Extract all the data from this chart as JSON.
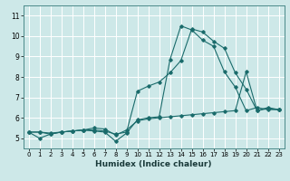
{
  "xlabel": "Humidex (Indice chaleur)",
  "bg_color": "#cde8e8",
  "line_color": "#1a6b6b",
  "grid_color": "#ffffff",
  "xlim": [
    -0.5,
    23.5
  ],
  "ylim": [
    4.5,
    11.5
  ],
  "xticks": [
    0,
    1,
    2,
    3,
    4,
    5,
    6,
    7,
    8,
    9,
    10,
    11,
    12,
    13,
    14,
    15,
    16,
    17,
    18,
    19,
    20,
    21,
    22,
    23
  ],
  "yticks": [
    5,
    6,
    7,
    8,
    9,
    10,
    11
  ],
  "line1_x": [
    0,
    1,
    2,
    3,
    4,
    5,
    6,
    7,
    8,
    9,
    10,
    11,
    12,
    13,
    14,
    15,
    16,
    17,
    18,
    19,
    20,
    21,
    22,
    23
  ],
  "line1_y": [
    5.3,
    5.0,
    5.2,
    5.3,
    5.35,
    5.4,
    5.35,
    5.3,
    4.85,
    5.25,
    5.9,
    6.0,
    6.05,
    8.85,
    10.5,
    10.3,
    9.8,
    9.5,
    8.25,
    7.5,
    6.35,
    6.5,
    6.4,
    6.4
  ],
  "line2_x": [
    0,
    1,
    2,
    3,
    4,
    5,
    6,
    7,
    8,
    9,
    10,
    11,
    12,
    13,
    14,
    15,
    16,
    17,
    18,
    19,
    20,
    21,
    22,
    23
  ],
  "line2_y": [
    5.3,
    5.3,
    5.2,
    5.3,
    5.35,
    5.4,
    5.4,
    5.35,
    5.2,
    5.3,
    7.3,
    7.55,
    7.75,
    8.2,
    8.8,
    10.35,
    10.2,
    9.75,
    9.4,
    8.2,
    7.4,
    6.35,
    6.5,
    6.4
  ],
  "line3_x": [
    0,
    1,
    2,
    3,
    4,
    5,
    6,
    7,
    8,
    9,
    10,
    11,
    12,
    13,
    14,
    15,
    16,
    17,
    18,
    19,
    20,
    21,
    22,
    23
  ],
  "line3_y": [
    5.3,
    5.3,
    5.25,
    5.3,
    5.35,
    5.4,
    5.5,
    5.45,
    5.15,
    5.4,
    5.85,
    5.95,
    6.0,
    6.05,
    6.1,
    6.15,
    6.2,
    6.25,
    6.3,
    6.35,
    8.25,
    6.35,
    6.45,
    6.4
  ]
}
